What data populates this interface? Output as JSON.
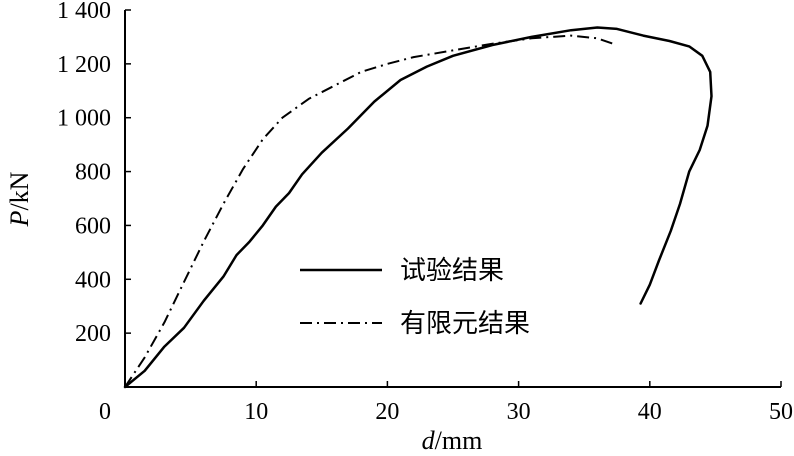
{
  "chart_data": {
    "type": "line",
    "xlabel": {
      "var": "d",
      "unit": "/mm"
    },
    "ylabel": {
      "var": "P",
      "unit": "/kN"
    },
    "xlim": [
      0,
      50
    ],
    "ylim": [
      0,
      1400
    ],
    "x_ticks": [
      0,
      10,
      20,
      30,
      40,
      50
    ],
    "y_ticks": [
      200,
      400,
      600,
      800,
      1000,
      1200,
      1400
    ],
    "x_tick_labels": [
      "0",
      "10",
      "20",
      "30",
      "40",
      "50"
    ],
    "y_tick_labels": [
      "200",
      "400",
      "600",
      "800",
      "1 000",
      "1 200",
      "1 400"
    ],
    "grid": false,
    "legend_position": "center-right",
    "series": [
      {
        "name": "试验结果",
        "style": "solid",
        "points": [
          [
            0,
            0
          ],
          [
            1.5,
            60
          ],
          [
            3,
            150
          ],
          [
            4.5,
            220
          ],
          [
            6,
            320
          ],
          [
            7.5,
            410
          ],
          [
            8.5,
            490
          ],
          [
            9.5,
            540
          ],
          [
            10.5,
            600
          ],
          [
            11.5,
            670
          ],
          [
            12.5,
            720
          ],
          [
            13.5,
            790
          ],
          [
            15,
            870
          ],
          [
            17,
            960
          ],
          [
            19,
            1060
          ],
          [
            21,
            1140
          ],
          [
            23,
            1190
          ],
          [
            25,
            1230
          ],
          [
            28,
            1270
          ],
          [
            31,
            1300
          ],
          [
            34,
            1325
          ],
          [
            36,
            1335
          ],
          [
            37.5,
            1330
          ],
          [
            39.5,
            1305
          ],
          [
            41.5,
            1285
          ],
          [
            43,
            1265
          ],
          [
            44,
            1230
          ],
          [
            44.6,
            1170
          ],
          [
            44.7,
            1080
          ],
          [
            44.4,
            970
          ],
          [
            43.8,
            880
          ],
          [
            43,
            800
          ],
          [
            42.3,
            680
          ],
          [
            41.6,
            580
          ],
          [
            40.7,
            470
          ],
          [
            40,
            380
          ],
          [
            39.3,
            310
          ]
        ]
      },
      {
        "name": "有限元结果",
        "style": "dash-dot",
        "points": [
          [
            0,
            0
          ],
          [
            1.5,
            110
          ],
          [
            3,
            240
          ],
          [
            4.5,
            390
          ],
          [
            6,
            540
          ],
          [
            7.5,
            680
          ],
          [
            9,
            810
          ],
          [
            10.5,
            920
          ],
          [
            12,
            1000
          ],
          [
            14,
            1070
          ],
          [
            16,
            1120
          ],
          [
            18,
            1170
          ],
          [
            20,
            1200
          ],
          [
            22,
            1225
          ],
          [
            25,
            1250
          ],
          [
            28,
            1275
          ],
          [
            31,
            1295
          ],
          [
            34,
            1305
          ],
          [
            36,
            1295
          ],
          [
            37.2,
            1275
          ]
        ]
      }
    ]
  }
}
